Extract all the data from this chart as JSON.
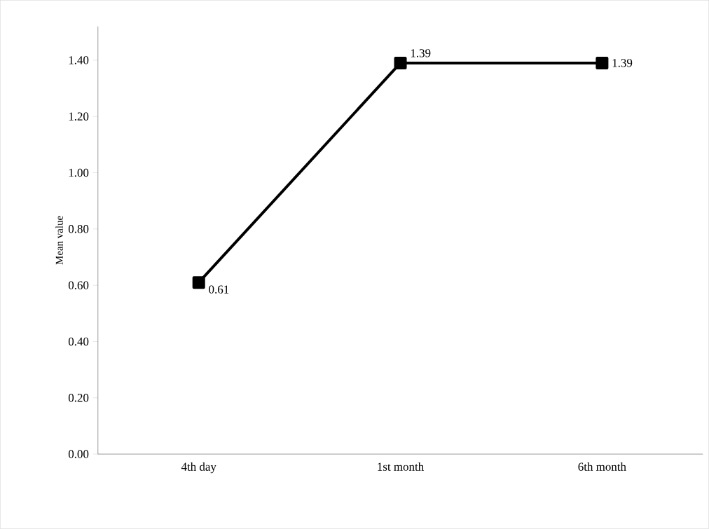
{
  "chart_data": {
    "type": "line",
    "ylabel": "Mean value",
    "categories": [
      "4th day",
      "1st month",
      "6th month"
    ],
    "series": [
      {
        "color": "#000000",
        "values": [
          0.61,
          1.39,
          1.39
        ]
      }
    ],
    "ylim": [
      0,
      1.52
    ],
    "yticks": [
      {
        "value": 0,
        "label": "0.00"
      },
      {
        "value": 0.2,
        "label": "0.20"
      },
      {
        "value": 0.4,
        "label": "0.40"
      },
      {
        "value": 0.6,
        "label": "0.60"
      },
      {
        "value": 0.8,
        "label": "0.80"
      },
      {
        "value": 1.0,
        "label": "1.00"
      },
      {
        "value": 1.2,
        "label": "1.20"
      },
      {
        "value": 1.4,
        "label": "1.40"
      }
    ],
    "data_labels": true,
    "marker": "square",
    "line_style": "solid"
  }
}
